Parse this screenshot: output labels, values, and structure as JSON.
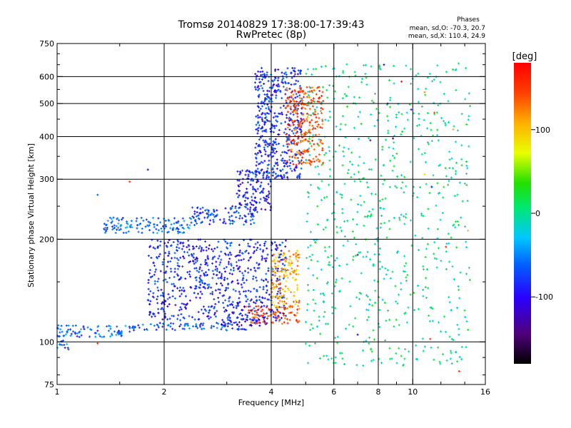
{
  "chart_data": {
    "type": "scatter",
    "title": "Tromsø 20140829 17:38:00-17:39:43",
    "subtitle": "RwPretec (8p)",
    "xlabel": "Frequency [MHz]",
    "ylabel": "Stationary phase Virtual Height [km]",
    "x_scale": "log",
    "y_scale": "log",
    "xlim": [
      1,
      16
    ],
    "ylim": [
      75,
      750
    ],
    "x_ticks": [
      1,
      2,
      4,
      6,
      8,
      10,
      16
    ],
    "y_ticks": [
      75,
      100,
      200,
      300,
      400,
      500,
      600,
      750
    ],
    "x_gridlines": [
      2,
      4,
      6,
      8,
      10
    ],
    "y_gridlines": [
      100,
      200,
      300,
      400,
      500,
      600
    ],
    "grid": true,
    "legend": {
      "title": "Phases",
      "lines": [
        "mean, sd,O: -70.3, 20.7",
        "mean, sd,X: 110.4, 24.9"
      ],
      "placement": "top-right"
    },
    "colorbar": {
      "label": "[deg]",
      "range": [
        -180,
        180
      ],
      "ticks": [
        100,
        0,
        -100
      ],
      "colormap": "rainbow (black → violet → blue → cyan → green → yellow → red)"
    },
    "point_clusters": [
      {
        "name": "E-region low trace",
        "x_range": [
          1.0,
          1.08
        ],
        "y_range": [
          95,
          101
        ],
        "phase_deg": -55
      },
      {
        "name": "E-layer trace",
        "x_range": [
          1.0,
          1.6
        ],
        "y_range": [
          103,
          112
        ],
        "phase_deg": -60
      },
      {
        "name": "E-layer trace",
        "x_range": [
          1.6,
          3.4
        ],
        "y_range": [
          108,
          114
        ],
        "phase_deg": -70
      },
      {
        "name": "F1 lower trace (O)",
        "x_range": [
          2.8,
          3.9
        ],
        "y_range": [
          111,
          118
        ],
        "phase_deg": -110
      },
      {
        "name": "F1 lower trace (X)",
        "x_range": [
          3.4,
          4.8
        ],
        "y_range": [
          113,
          128
        ],
        "phase_deg": 140
      },
      {
        "name": "spread F cloud",
        "x_range": [
          1.8,
          4.4
        ],
        "y_range": [
          115,
          200
        ],
        "phase_deg": -85
      },
      {
        "name": "X spread cloud",
        "x_range": [
          4.0,
          4.8
        ],
        "y_range": [
          125,
          185
        ],
        "phase_deg": 110
      },
      {
        "name": "F2 lower trace",
        "x_range": [
          1.35,
          2.4
        ],
        "y_range": [
          208,
          232
        ],
        "phase_deg": -60
      },
      {
        "name": "F2 lower trace",
        "x_range": [
          2.4,
          3.6
        ],
        "y_range": [
          220,
          250
        ],
        "phase_deg": -75
      },
      {
        "name": "F2 cusp cloud",
        "x_range": [
          3.2,
          4.0
        ],
        "y_range": [
          240,
          320
        ],
        "phase_deg": -90
      },
      {
        "name": "F2 O-trace",
        "x_range": [
          3.6,
          4.9
        ],
        "y_range": [
          300,
          640
        ],
        "phase_deg": -80
      },
      {
        "name": "F2 X-trace",
        "x_range": [
          4.4,
          5.6
        ],
        "y_range": [
          330,
          560
        ],
        "phase_deg": 140
      },
      {
        "name": "scattered noise",
        "x_range": [
          5.0,
          14.5
        ],
        "y_range": [
          85,
          660
        ],
        "phase_deg": 0
      }
    ],
    "isolated_points": [
      {
        "x": 1.3,
        "y": 99,
        "phase_deg": 160
      },
      {
        "x": 1.3,
        "y": 270,
        "phase_deg": -60
      },
      {
        "x": 1.6,
        "y": 295,
        "phase_deg": 150
      },
      {
        "x": 1.8,
        "y": 320,
        "phase_deg": -100
      },
      {
        "x": 7.0,
        "y": 180,
        "phase_deg": -110
      },
      {
        "x": 7.4,
        "y": 595,
        "phase_deg": 30
      },
      {
        "x": 7.6,
        "y": 390,
        "phase_deg": -130
      },
      {
        "x": 8.3,
        "y": 650,
        "phase_deg": -120
      },
      {
        "x": 8.5,
        "y": 500,
        "phase_deg": -100
      },
      {
        "x": 8.8,
        "y": 395,
        "phase_deg": -150
      },
      {
        "x": 9.3,
        "y": 580,
        "phase_deg": 170
      },
      {
        "x": 9.9,
        "y": 480,
        "phase_deg": -90
      },
      {
        "x": 10.8,
        "y": 540,
        "phase_deg": 120
      },
      {
        "x": 10.8,
        "y": 310,
        "phase_deg": 90
      },
      {
        "x": 11.5,
        "y": 470,
        "phase_deg": 140
      },
      {
        "x": 11.3,
        "y": 285,
        "phase_deg": -80
      },
      {
        "x": 12.4,
        "y": 190,
        "phase_deg": 160
      },
      {
        "x": 13.0,
        "y": 420,
        "phase_deg": 110
      },
      {
        "x": 13.5,
        "y": 82,
        "phase_deg": 150
      },
      {
        "x": 14.3,
        "y": 212,
        "phase_deg": 100
      },
      {
        "x": 11.2,
        "y": 102,
        "phase_deg": 150
      },
      {
        "x": 7.0,
        "y": 105,
        "phase_deg": -100
      }
    ]
  }
}
